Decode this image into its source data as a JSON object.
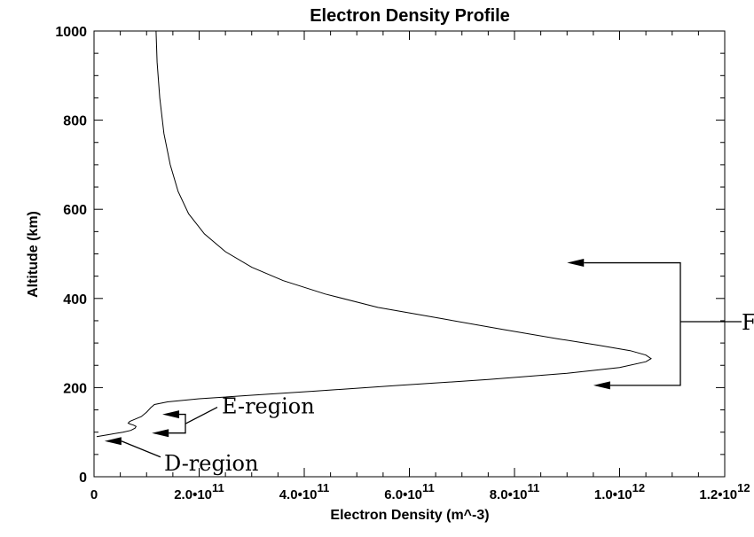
{
  "chart_data": {
    "type": "line",
    "title": "Electron Density Profile",
    "xlabel": "Electron Density (m^-3)",
    "ylabel": "Altitude (km)",
    "xlim": [
      0,
      1200000000000.0
    ],
    "ylim": [
      0,
      1000
    ],
    "x_ticks": [
      {
        "value": 0,
        "mantissa": "0",
        "exp": ""
      },
      {
        "value": 200000000000.0,
        "mantissa": "2.0•10",
        "exp": "11"
      },
      {
        "value": 400000000000.0,
        "mantissa": "4.0•10",
        "exp": "11"
      },
      {
        "value": 600000000000.0,
        "mantissa": "6.0•10",
        "exp": "11"
      },
      {
        "value": 800000000000.0,
        "mantissa": "8.0•10",
        "exp": "11"
      },
      {
        "value": 1000000000000.0,
        "mantissa": "1.0•10",
        "exp": "12"
      },
      {
        "value": 1200000000000.0,
        "mantissa": "1.2•10",
        "exp": "12"
      }
    ],
    "y_ticks": [
      0,
      200,
      400,
      600,
      800,
      1000
    ],
    "grid": false,
    "series": [
      {
        "color": "#000000",
        "points": [
          [
            5000000000.0,
            90
          ],
          [
            15000000000.0,
            92
          ],
          [
            30000000000.0,
            95
          ],
          [
            55000000000.0,
            100
          ],
          [
            70000000000.0,
            104
          ],
          [
            78000000000.0,
            109
          ],
          [
            80000000000.0,
            113
          ],
          [
            75000000000.0,
            116
          ],
          [
            69000000000.0,
            118
          ],
          [
            65000000000.0,
            120
          ],
          [
            68000000000.0,
            124
          ],
          [
            78000000000.0,
            129
          ],
          [
            90000000000.0,
            135
          ],
          [
            100000000000.0,
            145
          ],
          [
            108000000000.0,
            155
          ],
          [
            115000000000.0,
            162
          ],
          [
            140000000000.0,
            168
          ],
          [
            200000000000.0,
            175
          ],
          [
            300000000000.0,
            183
          ],
          [
            420000000000.0,
            192
          ],
          [
            580000000000.0,
            205
          ],
          [
            750000000000.0,
            218
          ],
          [
            900000000000.0,
            232
          ],
          [
            1000000000000.0,
            245
          ],
          [
            1050000000000.0,
            258
          ],
          [
            1060000000000.0,
            265
          ],
          [
            1050000000000.0,
            273
          ],
          [
            1020000000000.0,
            283
          ],
          [
            960000000000.0,
            295
          ],
          [
            880000000000.0,
            310
          ],
          [
            780000000000.0,
            330
          ],
          [
            660000000000.0,
            355
          ],
          [
            540000000000.0,
            380
          ],
          [
            440000000000.0,
            410
          ],
          [
            360000000000.0,
            440
          ],
          [
            300000000000.0,
            470
          ],
          [
            250000000000.0,
            505
          ],
          [
            210000000000.0,
            545
          ],
          [
            180000000000.0,
            590
          ],
          [
            160000000000.0,
            640
          ],
          [
            145000000000.0,
            700
          ],
          [
            133000000000.0,
            770
          ],
          [
            125000000000.0,
            850
          ],
          [
            120000000000.0,
            930
          ],
          [
            118000000000.0,
            1000
          ]
        ]
      }
    ],
    "annotations": [
      {
        "label": "E-region",
        "arrow_tips": [
          [
            130000000000.0,
            140
          ],
          [
            110000000000.0,
            98
          ]
        ]
      },
      {
        "label": "D-region",
        "arrow_tips": [
          [
            20000000000.0,
            80
          ]
        ]
      },
      {
        "label": "F",
        "arrow_tips": [
          [
            900000000000.0,
            480
          ],
          [
            950000000000.0,
            205
          ]
        ]
      }
    ]
  }
}
